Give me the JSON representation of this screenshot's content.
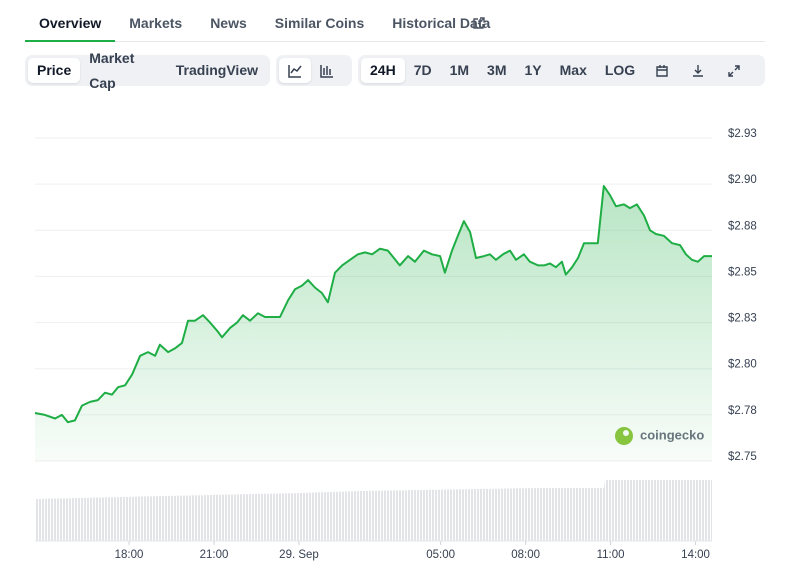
{
  "tabs": [
    "Overview",
    "Markets",
    "News",
    "Similar Coins",
    "Historical Data"
  ],
  "view_buttons": [
    "Price",
    "Market Cap",
    "TradingView"
  ],
  "range_buttons": [
    "24H",
    "7D",
    "1M",
    "3M",
    "1Y",
    "Max",
    "LOG"
  ],
  "watermark": "coingecko",
  "chart_data": {
    "type": "area",
    "color": "#1fae45",
    "grid": true,
    "x": [
      14.68,
      15.03,
      15.39,
      15.63,
      15.84,
      16.09,
      16.34,
      16.62,
      16.9,
      17.15,
      17.4,
      17.61,
      17.86,
      18.11,
      18.39,
      18.67,
      18.92,
      19.09,
      19.38,
      19.62,
      19.87,
      20.08,
      20.33,
      20.61,
      20.86,
      21.14,
      21.28,
      21.56,
      21.81,
      22.02,
      22.27,
      22.55,
      22.8,
      23.05,
      23.33,
      23.61,
      23.86,
      24.1,
      24.32,
      24.56,
      24.81,
      25.02,
      25.27,
      25.52,
      25.8,
      26.08,
      26.33,
      26.58,
      26.86,
      27.14,
      27.35,
      27.56,
      27.85,
      28.09,
      28.41,
      28.69,
      28.98,
      29.15,
      29.4,
      29.61,
      29.82,
      30.04,
      30.25,
      30.53,
      30.74,
      30.95,
      31.2,
      31.45,
      31.66,
      31.94,
      32.15,
      32.44,
      32.65,
      32.86,
      33.07,
      33.28,
      33.42,
      33.64,
      33.85,
      34.06,
      34.34,
      34.55,
      34.76,
      34.98,
      35.19,
      35.47,
      35.68,
      35.93,
      36.18,
      36.39,
      36.6,
      36.88,
      37.17,
      37.45,
      37.66,
      37.87,
      38.08,
      38.3,
      38.58
    ],
    "values": [
      2.776,
      2.775,
      2.773,
      2.775,
      2.771,
      2.772,
      2.78,
      2.782,
      2.783,
      2.787,
      2.786,
      2.79,
      2.791,
      2.797,
      2.807,
      2.809,
      2.807,
      2.813,
      2.809,
      2.811,
      2.814,
      2.826,
      2.826,
      2.829,
      2.825,
      2.82,
      2.817,
      2.822,
      2.825,
      2.829,
      2.826,
      2.83,
      2.828,
      2.828,
      2.828,
      2.837,
      2.843,
      2.845,
      2.848,
      2.844,
      2.841,
      2.836,
      2.852,
      2.856,
      2.859,
      2.862,
      2.863,
      2.862,
      2.865,
      2.864,
      2.86,
      2.856,
      2.861,
      2.858,
      2.864,
      2.862,
      2.861,
      2.852,
      2.864,
      2.872,
      2.88,
      2.874,
      2.86,
      2.861,
      2.862,
      2.859,
      2.862,
      2.864,
      2.859,
      2.862,
      2.858,
      2.856,
      2.856,
      2.857,
      2.855,
      2.858,
      2.851,
      2.855,
      2.86,
      2.868,
      2.868,
      2.868,
      2.899,
      2.894,
      2.888,
      2.889,
      2.887,
      2.889,
      2.883,
      2.875,
      2.873,
      2.872,
      2.868,
      2.867,
      2.862,
      2.859,
      2.858,
      2.861,
      2.861
    ],
    "xlim": [
      14.68,
      38.58
    ],
    "xticks": [
      {
        "value": 18,
        "label": "18:00"
      },
      {
        "value": 21,
        "label": "21:00"
      },
      {
        "value": 24,
        "label": "29. Sep"
      },
      {
        "value": 29,
        "label": "05:00"
      },
      {
        "value": 32,
        "label": "08:00"
      },
      {
        "value": 35,
        "label": "11:00"
      },
      {
        "value": 38,
        "label": "14:00"
      }
    ],
    "ylim": [
      2.75,
      2.925
    ],
    "yticks": [
      {
        "value": 2.925,
        "label": "$2.93"
      },
      {
        "value": 2.9,
        "label": "$2.90"
      },
      {
        "value": 2.875,
        "label": "$2.88"
      },
      {
        "value": 2.85,
        "label": "$2.85"
      },
      {
        "value": 2.825,
        "label": "$2.83"
      },
      {
        "value": 2.8,
        "label": "$2.80"
      },
      {
        "value": 2.775,
        "label": "$2.78"
      },
      {
        "value": 2.75,
        "label": "$2.75"
      }
    ]
  }
}
